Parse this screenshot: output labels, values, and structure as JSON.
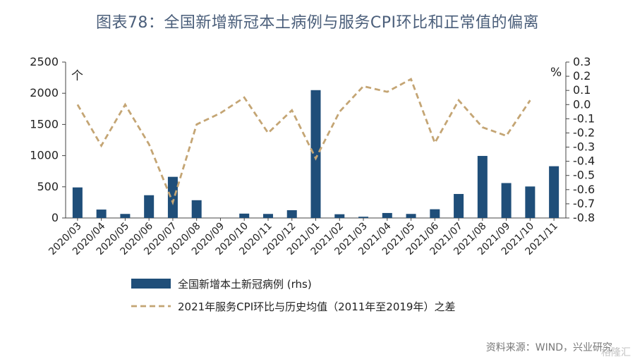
{
  "title": "图表78：全国新增新冠本土病例与服务CPI环比和正常值的偏离",
  "source": "资料来源：WIND，兴业研究",
  "watermark": "格隆汇",
  "colors": {
    "bar": "#1f4e79",
    "line": "#c4a574",
    "axis": "#444444"
  },
  "chart_data": {
    "type": "bar+line",
    "categories": [
      "2020/03",
      "2020/04",
      "2020/05",
      "2020/06",
      "2020/07",
      "2020/08",
      "2020/09",
      "2020/10",
      "2020/11",
      "2020/12",
      "2021/01",
      "2021/02",
      "2021/03",
      "2021/04",
      "2021/05",
      "2021/06",
      "2021/07",
      "2021/08",
      "2021/09",
      "2021/10",
      "2021/11"
    ],
    "left_axis": {
      "unit_label": "个",
      "ylim": [
        0,
        2500
      ],
      "ticks": [
        "0",
        "500",
        "1000",
        "1500",
        "2000",
        "2500"
      ]
    },
    "right_axis": {
      "unit_label": "%",
      "ylim": [
        -0.8,
        0.3
      ],
      "ticks": [
        "0.3",
        "0.2",
        "0.1",
        "0.0",
        "-0.1",
        "-0.2",
        "-0.3",
        "-0.4",
        "-0.5",
        "-0.6",
        "-0.7",
        "-0.8"
      ]
    },
    "series": [
      {
        "name": "全国新增本土新冠病例 (rhs)",
        "kind": "bar",
        "axis": "left",
        "values": [
          490,
          135,
          65,
          365,
          660,
          285,
          null,
          70,
          65,
          125,
          2050,
          60,
          20,
          80,
          65,
          140,
          385,
          995,
          560,
          505,
          830
        ]
      },
      {
        "name": "2021年服务CPI环比与历史均值（2011年至2019年）之差",
        "kind": "line",
        "style": "dashed",
        "axis": "right",
        "values": [
          0.0,
          -0.29,
          0.0,
          -0.28,
          -0.69,
          -0.14,
          -0.06,
          0.05,
          -0.2,
          -0.04,
          -0.38,
          -0.05,
          0.13,
          0.09,
          0.18,
          -0.27,
          0.03,
          -0.16,
          -0.22,
          0.03,
          null
        ]
      }
    ],
    "legend_placement": "bottom",
    "grid": false
  }
}
